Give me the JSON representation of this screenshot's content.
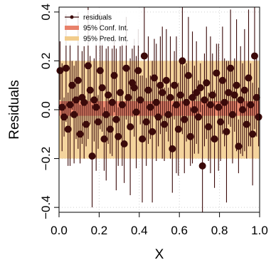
{
  "chart_data": {
    "type": "scatter",
    "title": "",
    "xlabel": "X",
    "ylabel": "Residuals",
    "xlim": [
      0.0,
      1.0
    ],
    "ylim": [
      -0.42,
      0.42
    ],
    "x_ticks": [
      "0.0",
      "0.2",
      "0.4",
      "0.6",
      "0.8",
      "1.0"
    ],
    "y_ticks": [
      "−0.4",
      "−0.2",
      "0.0",
      "0.2",
      "0.4"
    ],
    "grid": true,
    "legend": {
      "position": "top-left",
      "entries": [
        "residuals",
        "95% Conf. Int.",
        "95% Pred. Int."
      ]
    },
    "conf_int": {
      "lower": -0.025,
      "upper": 0.035
    },
    "pred_int": {
      "lower": -0.2,
      "upper": 0.2
    },
    "residuals": {
      "x": [
        0.005,
        0.015,
        0.025,
        0.035,
        0.045,
        0.055,
        0.065,
        0.075,
        0.085,
        0.095,
        0.105,
        0.115,
        0.125,
        0.135,
        0.145,
        0.155,
        0.165,
        0.175,
        0.185,
        0.195,
        0.205,
        0.215,
        0.225,
        0.235,
        0.245,
        0.255,
        0.265,
        0.275,
        0.285,
        0.295,
        0.305,
        0.315,
        0.325,
        0.335,
        0.345,
        0.355,
        0.365,
        0.375,
        0.385,
        0.395,
        0.405,
        0.415,
        0.425,
        0.435,
        0.445,
        0.455,
        0.465,
        0.475,
        0.485,
        0.495,
        0.505,
        0.515,
        0.525,
        0.535,
        0.545,
        0.555,
        0.565,
        0.575,
        0.585,
        0.595,
        0.605,
        0.615,
        0.625,
        0.635,
        0.645,
        0.655,
        0.665,
        0.675,
        0.685,
        0.695,
        0.705,
        0.715,
        0.725,
        0.735,
        0.745,
        0.755,
        0.765,
        0.775,
        0.785,
        0.795,
        0.805,
        0.815,
        0.825,
        0.835,
        0.845,
        0.855,
        0.865,
        0.875,
        0.885,
        0.895,
        0.905,
        0.915,
        0.925,
        0.935,
        0.945,
        0.955,
        0.965,
        0.975,
        0.985,
        0.995
      ],
      "y": [
        0.16,
        0.01,
        -0.03,
        0.17,
        -0.08,
        0.02,
        0.1,
        -0.02,
        0.04,
        0.12,
        -0.1,
        0.05,
        0.03,
        -0.06,
        0.18,
        0.08,
        -0.19,
        0.04,
        0.01,
        -0.05,
        0.16,
        0.09,
        -0.12,
        -0.02,
        0.06,
        -0.08,
        0.03,
        0.14,
        -0.04,
        -0.11,
        0.07,
        0.02,
        -0.14,
        0.17,
        0.05,
        -0.07,
        0.11,
        0.09,
        -0.01,
        0.16,
        0.04,
        -0.12,
        0.22,
        -0.05,
        0.08,
        0.01,
        -0.09,
        0.13,
        0.03,
        -0.03,
        0.1,
        0.07,
        -0.06,
        0.12,
        -0.02,
        0.05,
        -0.16,
        0.1,
        0.02,
        -0.08,
        0.06,
        0.2,
        -0.04,
        0.03,
        0.14,
        -0.11,
        0.05,
        0.0,
        0.07,
        -0.03,
        0.09,
        -0.23,
        0.04,
        0.11,
        -0.07,
        0.02,
        0.06,
        -0.12,
        0.15,
        0.01,
        -0.05,
        0.12,
        0.03,
        -0.09,
        0.07,
        0.17,
        -0.02,
        0.06,
        0.1,
        -0.15,
        0.04,
        0.0,
        0.08,
        -0.06,
        0.13,
        0.02,
        -0.1,
        0.22,
        0.05,
        -0.03
      ],
      "err": [
        0.12,
        0.18,
        0.08,
        0.22,
        0.15,
        0.25,
        0.1,
        0.2,
        0.16,
        0.28,
        0.12,
        0.19,
        0.23,
        0.09,
        0.3,
        0.14,
        0.21,
        0.17,
        0.26,
        0.11,
        0.24,
        0.18,
        0.13,
        0.27,
        0.2,
        0.1,
        0.22,
        0.15,
        0.29,
        0.12,
        0.19,
        0.25,
        0.16,
        0.21,
        0.11,
        0.28,
        0.14,
        0.2,
        0.23,
        0.17,
        0.1,
        0.26,
        0.35,
        0.18,
        0.22,
        0.13,
        0.29,
        0.16,
        0.24,
        0.12,
        0.2,
        0.27,
        0.15,
        0.21,
        0.11,
        0.25,
        0.18,
        0.14,
        0.28,
        0.19,
        0.13,
        0.3,
        0.22,
        0.16,
        0.24,
        0.12,
        0.27,
        0.18,
        0.21,
        0.15,
        0.1,
        0.25,
        0.19,
        0.23,
        0.14,
        0.28,
        0.17,
        0.2,
        0.12,
        0.26,
        0.16,
        0.22,
        0.18,
        0.29,
        0.13,
        0.24,
        0.2,
        0.15,
        0.27,
        0.11,
        0.22,
        0.19,
        0.25,
        0.14,
        0.28,
        0.17,
        0.21,
        0.3,
        0.16,
        0.12
      ]
    },
    "colors": {
      "residuals": "#3b0a0a",
      "conf_int": "#e8816a",
      "pred_int": "#f2cc8c",
      "grid": "#d0d0d0",
      "axis": "#000000"
    }
  }
}
